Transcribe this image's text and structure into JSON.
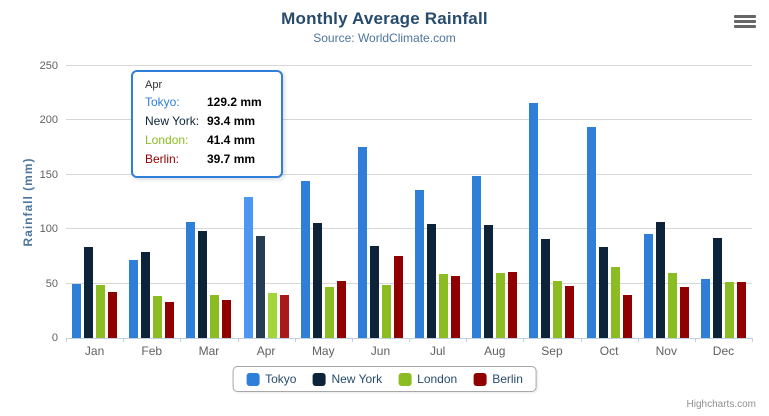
{
  "chart_data": {
    "type": "bar",
    "title": "Monthly Average Rainfall",
    "subtitle": "Source: WorldClimate.com",
    "xlabel": "",
    "ylabel": "Rainfall (mm)",
    "ylim": [
      0,
      250
    ],
    "yticks": [
      0,
      50,
      100,
      150,
      200,
      250
    ],
    "grid": "horizontal",
    "legend_position": "bottom",
    "highlighted_category": "Apr",
    "categories": [
      "Jan",
      "Feb",
      "Mar",
      "Apr",
      "May",
      "Jun",
      "Jul",
      "Aug",
      "Sep",
      "Oct",
      "Nov",
      "Dec"
    ],
    "series": [
      {
        "name": "Tokyo",
        "color": "#2f7ed8",
        "hover_color": "#4b97f1",
        "values": [
          49.9,
          71.5,
          106.4,
          129.2,
          144.0,
          176.0,
          135.6,
          148.5,
          216.4,
          194.1,
          95.6,
          54.4
        ]
      },
      {
        "name": "New York",
        "color": "#0d233a",
        "hover_color": "#263c53",
        "values": [
          83.6,
          78.8,
          98.5,
          93.4,
          106.0,
          84.5,
          105.0,
          104.3,
          91.2,
          83.5,
          106.6,
          92.3
        ]
      },
      {
        "name": "London",
        "color": "#8bbc21",
        "hover_color": "#a4d53a",
        "values": [
          48.9,
          38.8,
          39.3,
          41.4,
          47.0,
          48.3,
          59.0,
          59.6,
          52.4,
          65.2,
          59.3,
          51.2
        ]
      },
      {
        "name": "Berlin",
        "color": "#910000",
        "hover_color": "#aa1919",
        "values": [
          42.4,
          33.2,
          34.5,
          39.7,
          52.6,
          75.5,
          57.4,
          60.4,
          47.6,
          39.1,
          46.8,
          51.1
        ]
      }
    ]
  },
  "tooltip": {
    "header": "Apr",
    "border_color": "#2f7ed8",
    "rows": [
      {
        "label": "Tokyo:",
        "value": "129.2 mm",
        "color": "#2f7ed8"
      },
      {
        "label": "New York:",
        "value": "93.4 mm",
        "color": "#0d233a"
      },
      {
        "label": "London:",
        "value": "41.4 mm",
        "color": "#8bbc21"
      },
      {
        "label": "Berlin:",
        "value": "39.7 mm",
        "color": "#910000"
      }
    ]
  },
  "credits": "Highcharts.com",
  "colors": {
    "title": "#274b6d",
    "subtitle": "#4d759e",
    "axis_labels": "#606060",
    "axis_line": "#c0d0e0",
    "gridline": "#d8d8d8"
  }
}
